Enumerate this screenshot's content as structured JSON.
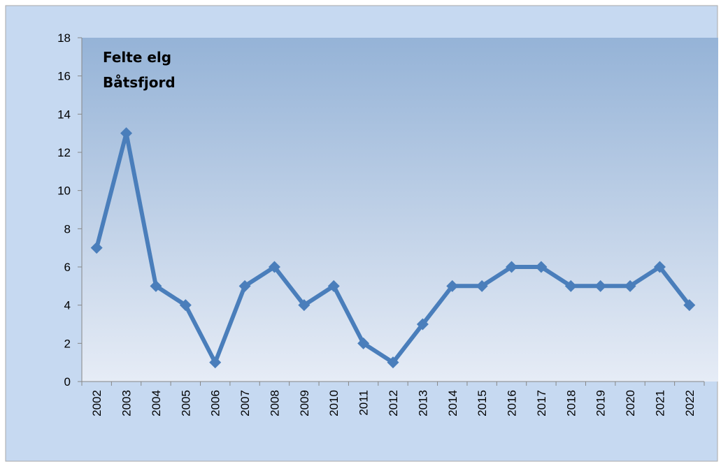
{
  "chart_data": {
    "type": "line",
    "title_lines": [
      "Felte elg",
      "Båtsfjord"
    ],
    "xlabel": "",
    "ylabel": "",
    "categories": [
      "2002",
      "2003",
      "2004",
      "2005",
      "2006",
      "2007",
      "2008",
      "2009",
      "2010",
      "2011",
      "2012",
      "2013",
      "2014",
      "2015",
      "2016",
      "2017",
      "2018",
      "2019",
      "2020",
      "2021",
      "2022"
    ],
    "series": [
      {
        "values": [
          7,
          13,
          5,
          4,
          1,
          5,
          6,
          4,
          5,
          2,
          1,
          3,
          5,
          5,
          6,
          6,
          5,
          5,
          5,
          6,
          4
        ]
      }
    ],
    "ylim": [
      0,
      18
    ],
    "yticks": [
      0,
      2,
      4,
      6,
      8,
      10,
      12,
      14,
      16,
      18
    ],
    "grid": false,
    "legend": "none",
    "marker": "diamond",
    "colors": {
      "line": "#4a7ebb",
      "plot_top": "#95b3d7",
      "plot_bottom": "#e6ecf6",
      "chart_area": "#c6d9f1",
      "border": "#a8a8a8",
      "axis": "#868686"
    }
  }
}
